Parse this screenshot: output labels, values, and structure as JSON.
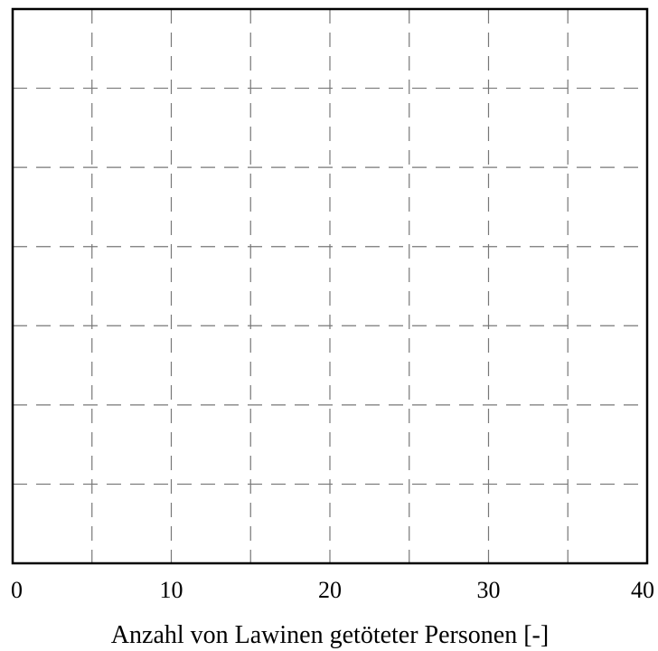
{
  "chart_data": {
    "type": "scatter",
    "title": "",
    "xlabel": "Anzahl von Lawinen getöteter Personen [-]",
    "ylabel": "",
    "xlim": [
      0,
      40
    ],
    "x_ticks": [
      0,
      10,
      20,
      30,
      40
    ],
    "x_tick_labels": [
      "0",
      "10",
      "20",
      "30",
      "40"
    ],
    "x_grid_values": [
      5,
      10,
      15,
      20,
      25,
      30,
      35
    ],
    "y_grid_count": 6,
    "grid": true,
    "grid_style": "dashed",
    "series": []
  },
  "colors": {
    "frame": "#000000",
    "grid": "#777777",
    "background": "#ffffff"
  }
}
